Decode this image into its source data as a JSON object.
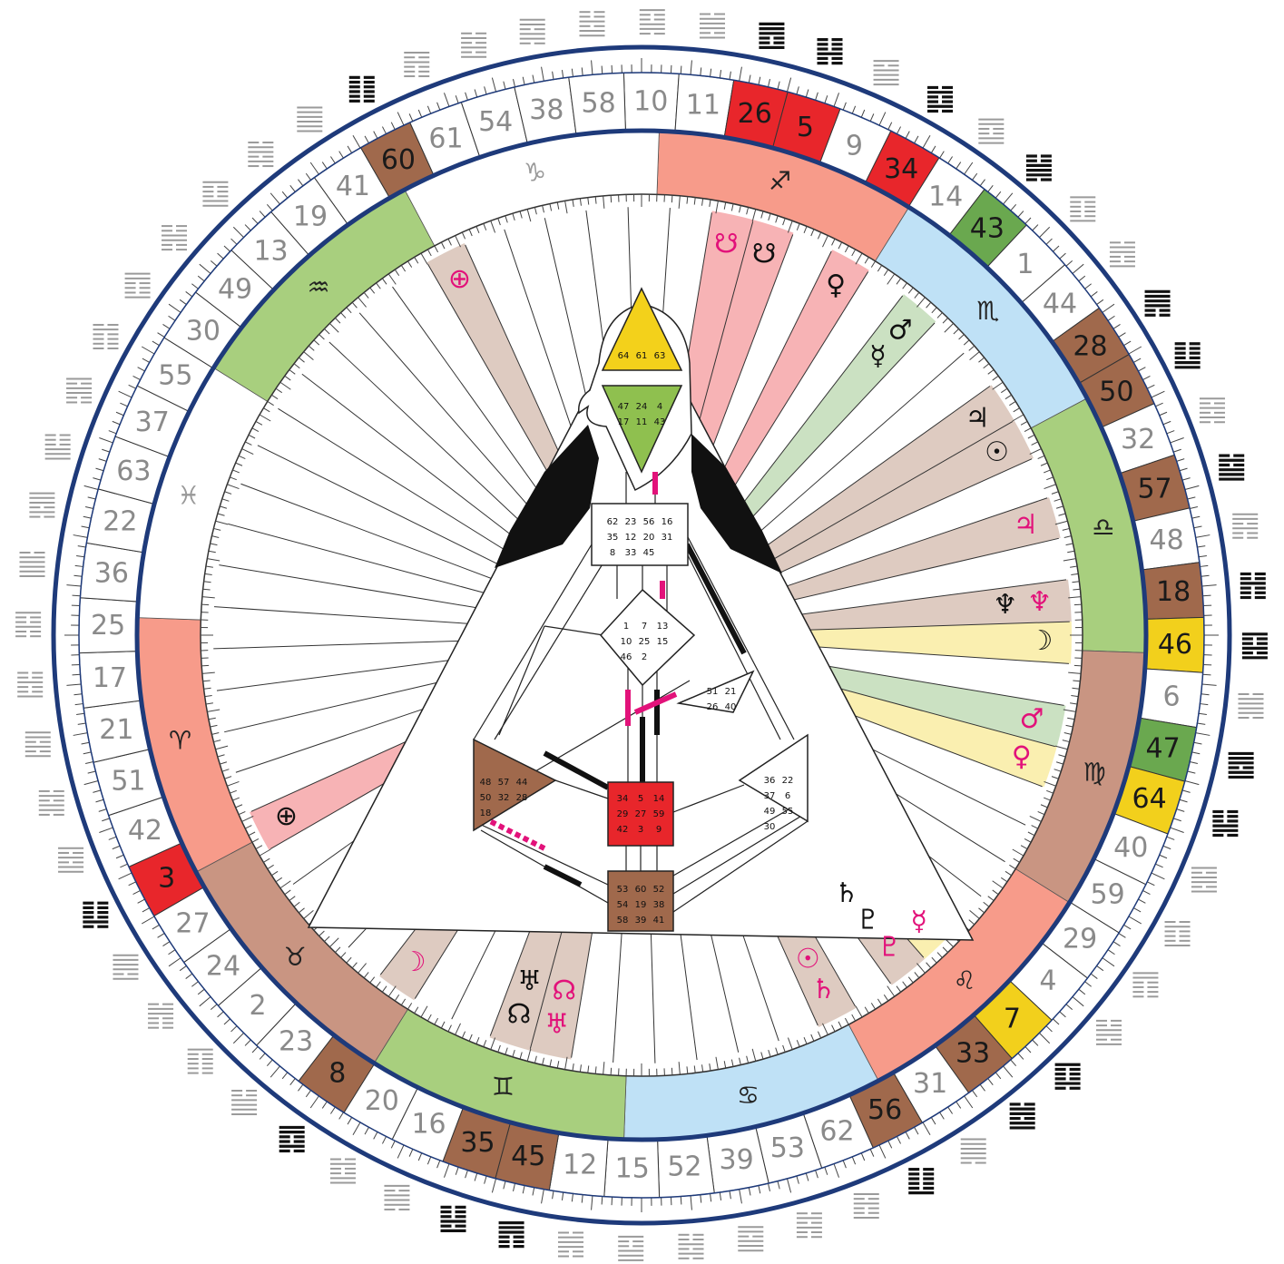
{
  "gates": [
    {
      "n": 10
    },
    {
      "n": 11
    },
    {
      "n": 26,
      "color": "#e8262b"
    },
    {
      "n": 5,
      "color": "#e8262b"
    },
    {
      "n": 9
    },
    {
      "n": 34,
      "color": "#e8262b"
    },
    {
      "n": 14
    },
    {
      "n": 43,
      "color": "#6aa84f"
    },
    {
      "n": 1
    },
    {
      "n": 44
    },
    {
      "n": 28,
      "color": "#a0694c"
    },
    {
      "n": 50,
      "color": "#a0694c"
    },
    {
      "n": 32
    },
    {
      "n": 57,
      "color": "#a0694c"
    },
    {
      "n": 48
    },
    {
      "n": 18,
      "color": "#a0694c"
    },
    {
      "n": 46,
      "color": "#f2d01c"
    },
    {
      "n": 6
    },
    {
      "n": 47,
      "color": "#6aa84f"
    },
    {
      "n": 64,
      "color": "#f2d01c"
    },
    {
      "n": 40
    },
    {
      "n": 59
    },
    {
      "n": 29
    },
    {
      "n": 4
    },
    {
      "n": 7,
      "color": "#f2d01c"
    },
    {
      "n": 33,
      "color": "#a0694c"
    },
    {
      "n": 31
    },
    {
      "n": 56,
      "color": "#a0694c"
    },
    {
      "n": 62
    },
    {
      "n": 53
    },
    {
      "n": 39
    },
    {
      "n": 52
    },
    {
      "n": 15
    },
    {
      "n": 12
    },
    {
      "n": 45,
      "color": "#a0694c"
    },
    {
      "n": 35,
      "color": "#a0694c"
    },
    {
      "n": 16
    },
    {
      "n": 20
    },
    {
      "n": 8,
      "color": "#a0694c"
    },
    {
      "n": 23
    },
    {
      "n": 2
    },
    {
      "n": 24
    },
    {
      "n": 27
    },
    {
      "n": 3,
      "color": "#e8262b"
    },
    {
      "n": 42
    },
    {
      "n": 51
    },
    {
      "n": 21
    },
    {
      "n": 17
    },
    {
      "n": 25
    },
    {
      "n": 36
    },
    {
      "n": 22
    },
    {
      "n": 63
    },
    {
      "n": 37
    },
    {
      "n": 55
    },
    {
      "n": 30
    },
    {
      "n": 49
    },
    {
      "n": 13
    },
    {
      "n": 19
    },
    {
      "n": 41
    },
    {
      "n": 60,
      "color": "#a0694c"
    },
    {
      "n": 61
    },
    {
      "n": 54
    },
    {
      "n": 38
    },
    {
      "n": 58
    }
  ],
  "zodiac": [
    {
      "symbol": "♐",
      "color": "#f79b8a"
    },
    {
      "symbol": "♏",
      "color": "#bfe1f6"
    },
    {
      "symbol": "♎",
      "color": "#a8cf7e"
    },
    {
      "symbol": "♍",
      "color": "#c99582"
    },
    {
      "symbol": "♌",
      "color": "#f79b8a"
    },
    {
      "symbol": "♋",
      "color": "#bfe1f6"
    },
    {
      "symbol": "♊",
      "color": "#a8cf7e"
    },
    {
      "symbol": "♉",
      "color": "#c99582"
    },
    {
      "symbol": "♈",
      "color": "#f79b8a"
    },
    {
      "symbol": "♓",
      "color": "#ffffff"
    },
    {
      "symbol": "♒",
      "color": "#a8cf7e"
    },
    {
      "symbol": "♑",
      "color": "#ffffff"
    }
  ],
  "design_color": "#e2127a",
  "personality_color": "#111111",
  "planets": [
    {
      "symbol": "☋",
      "gate": 26,
      "side": "design"
    },
    {
      "symbol": "☋",
      "gate": 5,
      "side": "personality"
    },
    {
      "symbol": "♀",
      "gate": 34,
      "side": "personality"
    },
    {
      "symbol": "♂",
      "gate": 43,
      "side": "personality"
    },
    {
      "symbol": "☿",
      "gate": 43,
      "side": "personality"
    },
    {
      "symbol": "♃",
      "gate": 28,
      "side": "personality"
    },
    {
      "symbol": "☉",
      "gate": 50,
      "side": "personality"
    },
    {
      "symbol": "♃",
      "gate": 57,
      "side": "design"
    },
    {
      "symbol": "♆",
      "gate": 18,
      "side": "design"
    },
    {
      "symbol": "♆",
      "gate": 18,
      "side": "personality"
    },
    {
      "symbol": "☽",
      "gate": 46,
      "side": "personality"
    },
    {
      "symbol": "♂",
      "gate": 47,
      "side": "design"
    },
    {
      "symbol": "♀",
      "gate": 64,
      "side": "design"
    },
    {
      "symbol": "☿",
      "gate": 7,
      "side": "design"
    },
    {
      "symbol": "♇",
      "gate": 33,
      "side": "design"
    },
    {
      "symbol": "♇",
      "gate": 33,
      "side": "personality"
    },
    {
      "symbol": "♄",
      "gate": 33,
      "side": "personality"
    },
    {
      "symbol": "♄",
      "gate": 56,
      "side": "design"
    },
    {
      "symbol": "☉",
      "gate": 56,
      "side": "design"
    },
    {
      "symbol": "♅",
      "gate": 45,
      "side": "design"
    },
    {
      "symbol": "☊",
      "gate": 45,
      "side": "design"
    },
    {
      "symbol": "☊",
      "gate": 35,
      "side": "personality"
    },
    {
      "symbol": "♅",
      "gate": 35,
      "side": "personality"
    },
    {
      "symbol": "☽",
      "gate": 8,
      "side": "design"
    },
    {
      "symbol": "⊕",
      "gate": 3,
      "side": "personality"
    },
    {
      "symbol": "⊕",
      "gate": 60,
      "side": "design"
    }
  ],
  "body": {
    "head": [
      64,
      61,
      63
    ],
    "ajna": [
      47,
      24,
      4,
      17,
      11,
      43
    ],
    "throat": [
      62,
      23,
      56,
      16,
      35,
      12,
      20,
      31,
      8,
      33,
      45
    ],
    "g": [
      1,
      7,
      13,
      10,
      25,
      15,
      46,
      2
    ],
    "heart": [
      51,
      21,
      26,
      40
    ],
    "spleen": [
      48,
      57,
      44,
      50,
      32,
      28,
      18
    ],
    "sacral": [
      34,
      5,
      14,
      29,
      27,
      59,
      42,
      3,
      9
    ],
    "root": [
      53,
      60,
      52,
      54,
      19,
      38,
      58,
      39,
      41
    ],
    "solar": [
      36,
      22,
      37,
      6,
      49,
      55,
      30
    ]
  }
}
